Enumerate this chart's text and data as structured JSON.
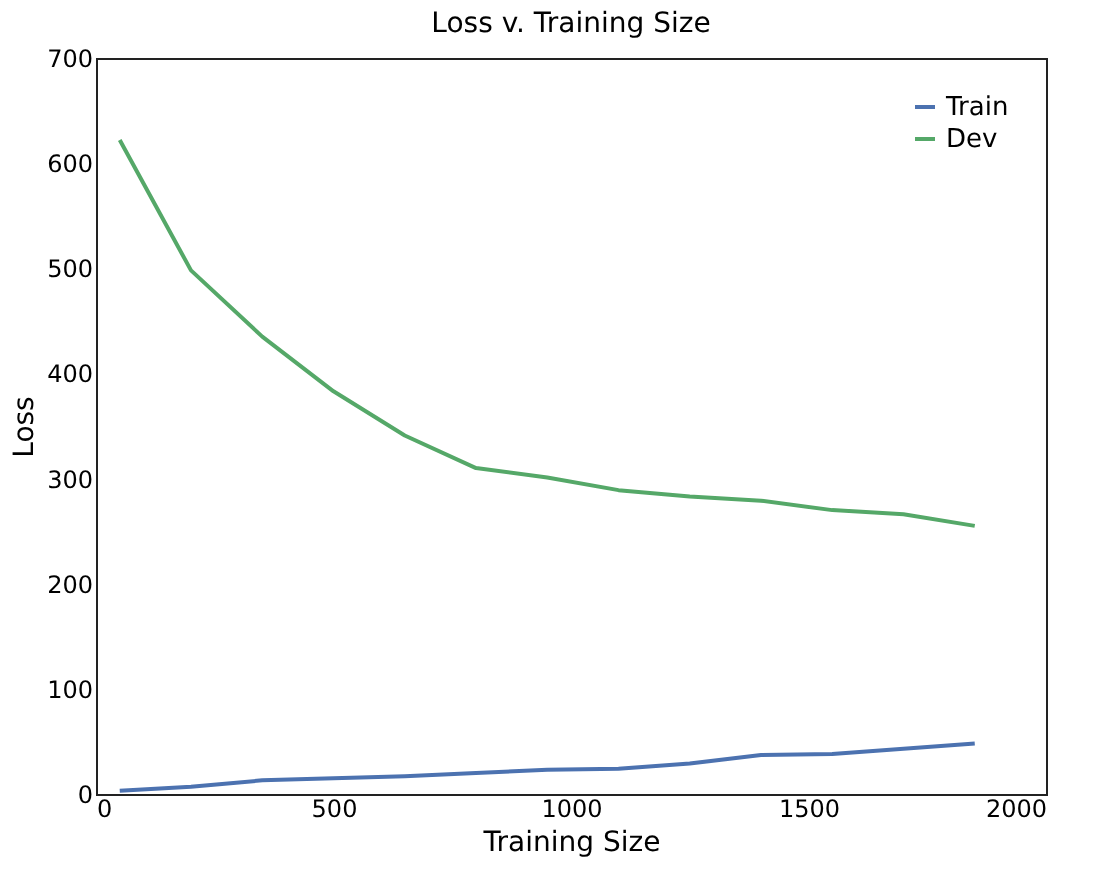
{
  "chart_data": {
    "type": "line",
    "title": "Loss v. Training Size",
    "xlabel": "Training Size",
    "ylabel": "Loss",
    "x": [
      50,
      200,
      350,
      500,
      650,
      800,
      950,
      1100,
      1250,
      1400,
      1550,
      1700,
      1850
    ],
    "series": [
      {
        "name": "Train",
        "color": "#4c72b0",
        "values": [
          3,
          7,
          13,
          15,
          17,
          20,
          23,
          24,
          29,
          37,
          38,
          43,
          48
        ]
      },
      {
        "name": "Dev",
        "color": "#55a868",
        "values": [
          622,
          498,
          435,
          383,
          341,
          310,
          301,
          289,
          283,
          279,
          270,
          266,
          255
        ]
      }
    ],
    "xlim": [
      0,
      2000
    ],
    "xticks": [
      0,
      500,
      1000,
      1500,
      2000
    ],
    "ylim": [
      0,
      700
    ],
    "yticks": [
      0,
      100,
      200,
      300,
      400,
      500,
      600,
      700
    ],
    "grid": false,
    "legend": "top right",
    "marker": "none",
    "line_style": "solid"
  }
}
